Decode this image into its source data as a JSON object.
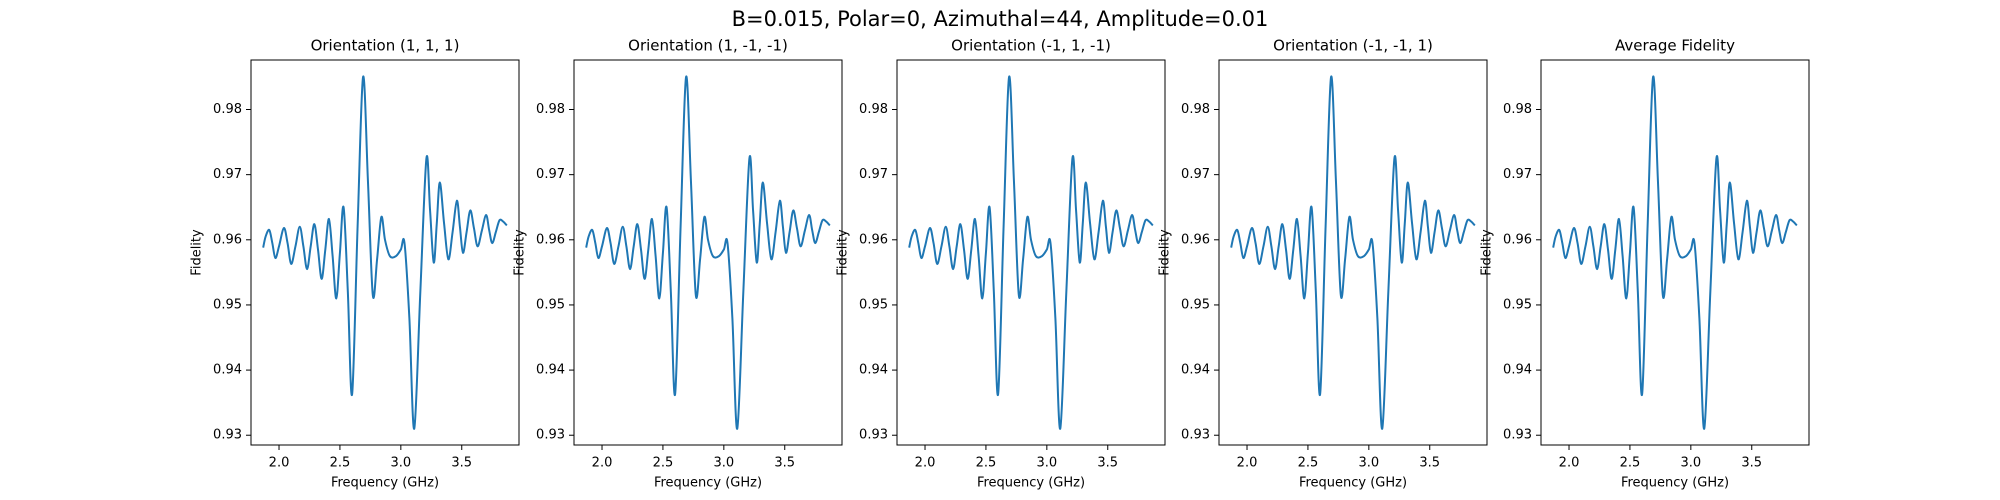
{
  "title": "B=0.015, Polar=0, Azimuthal=44, Amplitude=0.01",
  "chart_data": [
    {
      "type": "line",
      "title": "Orientation (1, 1, 1)",
      "x_label": "Frequency (GHz)",
      "y_label": "Fidelity",
      "color": "#1f77b4",
      "x": [
        1.87,
        1.89,
        1.92,
        1.945,
        1.97,
        2.0,
        2.04,
        2.07,
        2.1,
        2.135,
        2.17,
        2.2,
        2.23,
        2.26,
        2.29,
        2.32,
        2.35,
        2.38,
        2.41,
        2.44,
        2.47,
        2.5,
        2.53,
        2.565,
        2.6,
        2.645,
        2.69,
        2.73,
        2.77,
        2.805,
        2.84,
        2.87,
        2.91,
        2.96,
        3.0,
        3.03,
        3.07,
        3.11,
        3.16,
        3.21,
        3.24,
        3.27,
        3.295,
        3.32,
        3.355,
        3.39,
        3.425,
        3.46,
        3.485,
        3.51,
        3.54,
        3.57,
        3.6,
        3.63,
        3.665,
        3.7,
        3.725,
        3.75,
        3.78,
        3.81,
        3.84,
        3.87
      ],
      "values": [
        0.9588,
        0.9605,
        0.9615,
        0.9595,
        0.9572,
        0.959,
        0.9618,
        0.9595,
        0.9563,
        0.959,
        0.962,
        0.959,
        0.9555,
        0.959,
        0.9624,
        0.9585,
        0.954,
        0.9585,
        0.9632,
        0.9575,
        0.951,
        0.958,
        0.965,
        0.952,
        0.9363,
        0.962,
        0.985,
        0.969,
        0.9515,
        0.957,
        0.9635,
        0.96,
        0.9575,
        0.9575,
        0.9585,
        0.9595,
        0.948,
        0.931,
        0.952,
        0.9725,
        0.9645,
        0.9565,
        0.9625,
        0.9688,
        0.9625,
        0.957,
        0.9612,
        0.966,
        0.962,
        0.958,
        0.9612,
        0.9645,
        0.9618,
        0.959,
        0.9614,
        0.9638,
        0.9615,
        0.9595,
        0.9612,
        0.963,
        0.9628,
        0.9622
      ],
      "xlim": [
        1.77,
        3.97
      ],
      "ylim": [
        0.9285,
        0.9876
      ],
      "xticks": [
        {
          "value": 2,
          "label": "2.0"
        },
        {
          "value": 2.5,
          "label": "2.5"
        },
        {
          "value": 3,
          "label": "3.0"
        },
        {
          "value": 3.5,
          "label": "3.5"
        }
      ],
      "yticks": [
        0.93,
        0.94,
        0.95,
        0.96,
        0.97,
        0.98
      ]
    },
    {
      "type": "line",
      "title": "Orientation (1, -1, -1)",
      "x_label": "Frequency (GHz)",
      "y_label": "Fidelity",
      "color": "#1f77b4",
      "x": [
        1.87,
        1.89,
        1.92,
        1.945,
        1.97,
        2.0,
        2.04,
        2.07,
        2.1,
        2.135,
        2.17,
        2.2,
        2.23,
        2.26,
        2.29,
        2.32,
        2.35,
        2.38,
        2.41,
        2.44,
        2.47,
        2.5,
        2.53,
        2.565,
        2.6,
        2.645,
        2.69,
        2.73,
        2.77,
        2.805,
        2.84,
        2.87,
        2.91,
        2.96,
        3.0,
        3.03,
        3.07,
        3.11,
        3.16,
        3.21,
        3.24,
        3.27,
        3.295,
        3.32,
        3.355,
        3.39,
        3.425,
        3.46,
        3.485,
        3.51,
        3.54,
        3.57,
        3.6,
        3.63,
        3.665,
        3.7,
        3.725,
        3.75,
        3.78,
        3.81,
        3.84,
        3.87
      ],
      "values": [
        0.9588,
        0.9605,
        0.9615,
        0.9595,
        0.9572,
        0.959,
        0.9618,
        0.9595,
        0.9563,
        0.959,
        0.962,
        0.959,
        0.9555,
        0.959,
        0.9624,
        0.9585,
        0.954,
        0.9585,
        0.9632,
        0.9575,
        0.951,
        0.958,
        0.965,
        0.952,
        0.9363,
        0.962,
        0.985,
        0.969,
        0.9515,
        0.957,
        0.9635,
        0.96,
        0.9575,
        0.9575,
        0.9585,
        0.9595,
        0.948,
        0.931,
        0.952,
        0.9725,
        0.9645,
        0.9565,
        0.9625,
        0.9688,
        0.9625,
        0.957,
        0.9612,
        0.966,
        0.962,
        0.958,
        0.9612,
        0.9645,
        0.9618,
        0.959,
        0.9614,
        0.9638,
        0.9615,
        0.9595,
        0.9612,
        0.963,
        0.9628,
        0.9622
      ],
      "xlim": [
        1.77,
        3.97
      ],
      "ylim": [
        0.9285,
        0.9876
      ],
      "xticks": [
        {
          "value": 2,
          "label": "2.0"
        },
        {
          "value": 2.5,
          "label": "2.5"
        },
        {
          "value": 3,
          "label": "3.0"
        },
        {
          "value": 3.5,
          "label": "3.5"
        }
      ],
      "yticks": [
        0.93,
        0.94,
        0.95,
        0.96,
        0.97,
        0.98
      ]
    },
    {
      "type": "line",
      "title": "Orientation (-1, 1, -1)",
      "x_label": "Frequency (GHz)",
      "y_label": "Fidelity",
      "color": "#1f77b4",
      "x": [
        1.87,
        1.89,
        1.92,
        1.945,
        1.97,
        2.0,
        2.04,
        2.07,
        2.1,
        2.135,
        2.17,
        2.2,
        2.23,
        2.26,
        2.29,
        2.32,
        2.35,
        2.38,
        2.41,
        2.44,
        2.47,
        2.5,
        2.53,
        2.565,
        2.6,
        2.645,
        2.69,
        2.73,
        2.77,
        2.805,
        2.84,
        2.87,
        2.91,
        2.96,
        3.0,
        3.03,
        3.07,
        3.11,
        3.16,
        3.21,
        3.24,
        3.27,
        3.295,
        3.32,
        3.355,
        3.39,
        3.425,
        3.46,
        3.485,
        3.51,
        3.54,
        3.57,
        3.6,
        3.63,
        3.665,
        3.7,
        3.725,
        3.75,
        3.78,
        3.81,
        3.84,
        3.87
      ],
      "values": [
        0.9588,
        0.9605,
        0.9615,
        0.9595,
        0.9572,
        0.959,
        0.9618,
        0.9595,
        0.9563,
        0.959,
        0.962,
        0.959,
        0.9555,
        0.959,
        0.9624,
        0.9585,
        0.954,
        0.9585,
        0.9632,
        0.9575,
        0.951,
        0.958,
        0.965,
        0.952,
        0.9363,
        0.962,
        0.985,
        0.969,
        0.9515,
        0.957,
        0.9635,
        0.96,
        0.9575,
        0.9575,
        0.9585,
        0.9595,
        0.948,
        0.931,
        0.952,
        0.9725,
        0.9645,
        0.9565,
        0.9625,
        0.9688,
        0.9625,
        0.957,
        0.9612,
        0.966,
        0.962,
        0.958,
        0.9612,
        0.9645,
        0.9618,
        0.959,
        0.9614,
        0.9638,
        0.9615,
        0.9595,
        0.9612,
        0.963,
        0.9628,
        0.9622
      ],
      "xlim": [
        1.77,
        3.97
      ],
      "ylim": [
        0.9285,
        0.9876
      ],
      "xticks": [
        {
          "value": 2,
          "label": "2.0"
        },
        {
          "value": 2.5,
          "label": "2.5"
        },
        {
          "value": 3,
          "label": "3.0"
        },
        {
          "value": 3.5,
          "label": "3.5"
        }
      ],
      "yticks": [
        0.93,
        0.94,
        0.95,
        0.96,
        0.97,
        0.98
      ]
    },
    {
      "type": "line",
      "title": "Orientation (-1, -1, 1)",
      "x_label": "Frequency (GHz)",
      "y_label": "Fidelity",
      "color": "#1f77b4",
      "x": [
        1.87,
        1.89,
        1.92,
        1.945,
        1.97,
        2.0,
        2.04,
        2.07,
        2.1,
        2.135,
        2.17,
        2.2,
        2.23,
        2.26,
        2.29,
        2.32,
        2.35,
        2.38,
        2.41,
        2.44,
        2.47,
        2.5,
        2.53,
        2.565,
        2.6,
        2.645,
        2.69,
        2.73,
        2.77,
        2.805,
        2.84,
        2.87,
        2.91,
        2.96,
        3.0,
        3.03,
        3.07,
        3.11,
        3.16,
        3.21,
        3.24,
        3.27,
        3.295,
        3.32,
        3.355,
        3.39,
        3.425,
        3.46,
        3.485,
        3.51,
        3.54,
        3.57,
        3.6,
        3.63,
        3.665,
        3.7,
        3.725,
        3.75,
        3.78,
        3.81,
        3.84,
        3.87
      ],
      "values": [
        0.9588,
        0.9605,
        0.9615,
        0.9595,
        0.9572,
        0.959,
        0.9618,
        0.9595,
        0.9563,
        0.959,
        0.962,
        0.959,
        0.9555,
        0.959,
        0.9624,
        0.9585,
        0.954,
        0.9585,
        0.9632,
        0.9575,
        0.951,
        0.958,
        0.965,
        0.952,
        0.9363,
        0.962,
        0.985,
        0.969,
        0.9515,
        0.957,
        0.9635,
        0.96,
        0.9575,
        0.9575,
        0.9585,
        0.9595,
        0.948,
        0.931,
        0.952,
        0.9725,
        0.9645,
        0.9565,
        0.9625,
        0.9688,
        0.9625,
        0.957,
        0.9612,
        0.966,
        0.962,
        0.958,
        0.9612,
        0.9645,
        0.9618,
        0.959,
        0.9614,
        0.9638,
        0.9615,
        0.9595,
        0.9612,
        0.963,
        0.9628,
        0.9622
      ],
      "xlim": [
        1.77,
        3.97
      ],
      "ylim": [
        0.9285,
        0.9876
      ],
      "xticks": [
        {
          "value": 2,
          "label": "2.0"
        },
        {
          "value": 2.5,
          "label": "2.5"
        },
        {
          "value": 3,
          "label": "3.0"
        },
        {
          "value": 3.5,
          "label": "3.5"
        }
      ],
      "yticks": [
        0.93,
        0.94,
        0.95,
        0.96,
        0.97,
        0.98
      ]
    },
    {
      "type": "line",
      "title": "Average Fidelity",
      "x_label": "Frequency (GHz)",
      "y_label": "Fidelity",
      "color": "#1f77b4",
      "x": [
        1.87,
        1.89,
        1.92,
        1.945,
        1.97,
        2.0,
        2.04,
        2.07,
        2.1,
        2.135,
        2.17,
        2.2,
        2.23,
        2.26,
        2.29,
        2.32,
        2.35,
        2.38,
        2.41,
        2.44,
        2.47,
        2.5,
        2.53,
        2.565,
        2.6,
        2.645,
        2.69,
        2.73,
        2.77,
        2.805,
        2.84,
        2.87,
        2.91,
        2.96,
        3.0,
        3.03,
        3.07,
        3.11,
        3.16,
        3.21,
        3.24,
        3.27,
        3.295,
        3.32,
        3.355,
        3.39,
        3.425,
        3.46,
        3.485,
        3.51,
        3.54,
        3.57,
        3.6,
        3.63,
        3.665,
        3.7,
        3.725,
        3.75,
        3.78,
        3.81,
        3.84,
        3.87
      ],
      "values": [
        0.9588,
        0.9605,
        0.9615,
        0.9595,
        0.9572,
        0.959,
        0.9618,
        0.9595,
        0.9563,
        0.959,
        0.962,
        0.959,
        0.9555,
        0.959,
        0.9624,
        0.9585,
        0.954,
        0.9585,
        0.9632,
        0.9575,
        0.951,
        0.958,
        0.965,
        0.952,
        0.9363,
        0.962,
        0.985,
        0.969,
        0.9515,
        0.957,
        0.9635,
        0.96,
        0.9575,
        0.9575,
        0.9585,
        0.9595,
        0.948,
        0.931,
        0.952,
        0.9725,
        0.9645,
        0.9565,
        0.9625,
        0.9688,
        0.9625,
        0.957,
        0.9612,
        0.966,
        0.962,
        0.958,
        0.9612,
        0.9645,
        0.9618,
        0.959,
        0.9614,
        0.9638,
        0.9615,
        0.9595,
        0.9612,
        0.963,
        0.9628,
        0.9622
      ],
      "xlim": [
        1.77,
        3.97
      ],
      "ylim": [
        0.9285,
        0.9876
      ],
      "xticks": [
        {
          "value": 2,
          "label": "2.0"
        },
        {
          "value": 2.5,
          "label": "2.5"
        },
        {
          "value": 3,
          "label": "3.0"
        },
        {
          "value": 3.5,
          "label": "3.5"
        }
      ],
      "yticks": [
        0.93,
        0.94,
        0.95,
        0.96,
        0.97,
        0.98
      ]
    }
  ]
}
